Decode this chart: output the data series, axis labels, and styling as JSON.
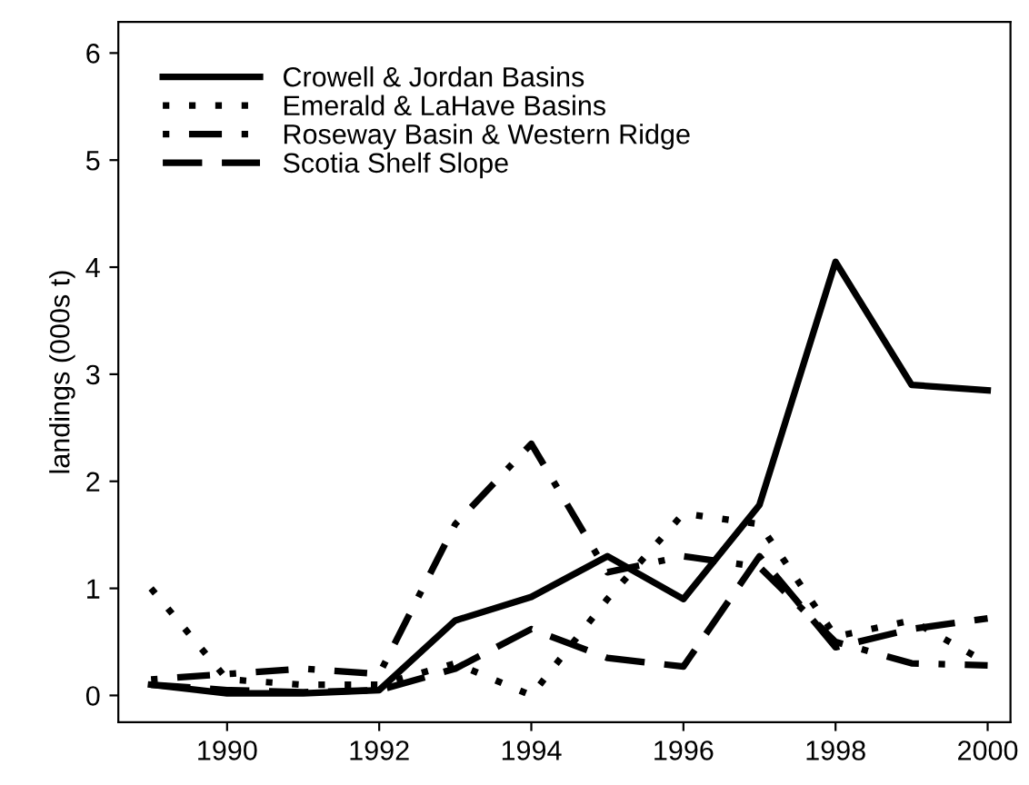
{
  "chart_data": {
    "type": "line",
    "ylabel": "landings (000s t)",
    "x": [
      1989,
      1990,
      1991,
      1992,
      1993,
      1994,
      1995,
      1996,
      1997,
      1998,
      1999,
      2000
    ],
    "xlim": [
      1988.57,
      2000.3
    ],
    "xticks": [
      1990,
      1992,
      1994,
      1996,
      1998,
      2000
    ],
    "ylim": [
      -0.25,
      6.29
    ],
    "yticks": [
      0,
      1,
      2,
      3,
      4,
      5,
      6
    ],
    "grid": false,
    "legend": "top left",
    "series": [
      {
        "name": "Crowell & Jordan Basins",
        "color": "#000000",
        "line_style": "solid",
        "values": [
          0.1,
          0.02,
          0.02,
          0.05,
          0.7,
          0.92,
          1.3,
          0.9,
          1.78,
          4.05,
          2.9,
          2.85
        ]
      },
      {
        "name": "Emerald & LaHave Basins",
        "color": "#000000",
        "line_style": "dotted",
        "values": [
          1.0,
          0.15,
          0.1,
          0.1,
          0.3,
          0.0,
          0.9,
          1.7,
          1.6,
          0.55,
          0.7,
          0.3
        ]
      },
      {
        "name": "Roseway Basin & Western Ridge",
        "color": "#000000",
        "line_style": "dashdot",
        "values": [
          0.15,
          0.2,
          0.25,
          0.2,
          1.6,
          2.35,
          1.15,
          1.3,
          1.2,
          0.5,
          0.3,
          0.28
        ]
      },
      {
        "name": "Scotia Shelf Slope",
        "color": "#000000",
        "line_style": "dashed",
        "values": [
          0.1,
          0.05,
          0.03,
          0.05,
          0.25,
          0.62,
          0.35,
          0.27,
          1.3,
          0.45,
          0.62,
          0.72
        ]
      }
    ]
  }
}
